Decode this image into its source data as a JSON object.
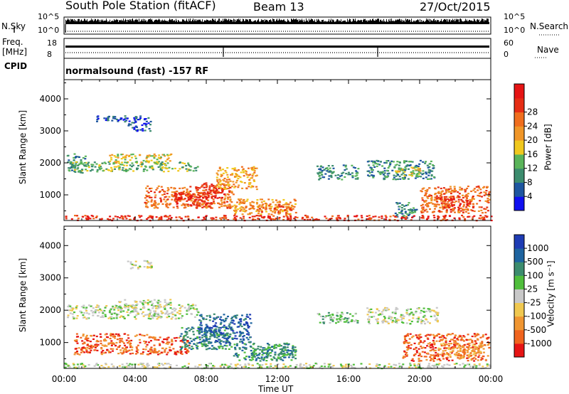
{
  "header": {
    "station": "South Pole Station (fitACF)",
    "beam": "Beam 13",
    "date": "27/Oct/2015"
  },
  "top_panels": {
    "nsky_label": "N.Sky",
    "nsearch_label": "N.Search",
    "sky_ticks": [
      "10^5",
      "10^0"
    ],
    "freq_label_1": "Freq.",
    "freq_label_2": "[MHz]",
    "freq_ticks": [
      "18",
      "8"
    ],
    "nave_label": "Nave",
    "nave_ticks": [
      "60",
      "0"
    ],
    "cpid_label": "CPID",
    "cpid_text": "normalsound (fast) -157 RF"
  },
  "chart_data": [
    {
      "type": "heatmap",
      "name": "power",
      "ylabel": "Slant Range [km]",
      "xlabel": "",
      "y_ticks": [
        1000,
        2000,
        3000,
        4000
      ],
      "ylim": [
        200,
        4600
      ],
      "xlim": [
        0,
        24
      ],
      "colorbar": {
        "label": "Power [dB]",
        "ticks": [
          "4",
          "8",
          "12",
          "16",
          "20",
          "24",
          "28"
        ],
        "colors": [
          "#1010f0",
          "#1e56a0",
          "#3c8c6e",
          "#5ab45a",
          "#f0c81e",
          "#f09628",
          "#f06e1e",
          "#e62d14",
          "#e61414"
        ]
      },
      "regions": [
        {
          "t0": 0.1,
          "t1": 1.2,
          "r0": 1700,
          "r1": 2300,
          "level": 2
        },
        {
          "t0": 0.2,
          "t1": 7.5,
          "r0": 1750,
          "r1": 2050,
          "level": 3
        },
        {
          "t0": 2.5,
          "t1": 6.0,
          "r0": 2000,
          "r1": 2300,
          "level": 4
        },
        {
          "t0": 1.8,
          "t1": 5.0,
          "r0": 3300,
          "r1": 3500,
          "level": 1
        },
        {
          "t0": 3.5,
          "t1": 4.8,
          "r0": 3000,
          "r1": 3300,
          "level": 1
        },
        {
          "t0": 4.5,
          "t1": 9.5,
          "r0": 600,
          "r1": 1300,
          "level": 6
        },
        {
          "t0": 6.0,
          "t1": 8.5,
          "r0": 650,
          "r1": 1100,
          "level": 7
        },
        {
          "t0": 7.5,
          "t1": 9.0,
          "r0": 900,
          "r1": 1400,
          "level": 7
        },
        {
          "t0": 8.5,
          "t1": 10.8,
          "r0": 1200,
          "r1": 1900,
          "level": 5
        },
        {
          "t0": 9.5,
          "t1": 13.0,
          "r0": 400,
          "r1": 900,
          "level": 5
        },
        {
          "t0": 10.8,
          "t1": 12.8,
          "r0": 450,
          "r1": 750,
          "level": 6
        },
        {
          "t0": 14.2,
          "t1": 16.5,
          "r0": 1500,
          "r1": 1950,
          "level": 2
        },
        {
          "t0": 17.0,
          "t1": 20.8,
          "r0": 1500,
          "r1": 2100,
          "level": 2
        },
        {
          "t0": 18.5,
          "t1": 20.0,
          "r0": 1600,
          "r1": 1900,
          "level": 4
        },
        {
          "t0": 18.5,
          "t1": 19.8,
          "r0": 300,
          "r1": 800,
          "level": 2
        },
        {
          "t0": 20.0,
          "t1": 23.9,
          "r0": 450,
          "r1": 1300,
          "level": 6
        },
        {
          "t0": 21.0,
          "t1": 23.0,
          "r0": 550,
          "r1": 1000,
          "level": 7
        },
        {
          "t0": 0.0,
          "t1": 24.0,
          "r0": 220,
          "r1": 380,
          "level": 7
        }
      ]
    },
    {
      "type": "heatmap",
      "name": "velocity",
      "ylabel": "Slant Range [km]",
      "xlabel": "Time UT",
      "x_ticks": [
        "00:00",
        "04:00",
        "08:00",
        "12:00",
        "16:00",
        "20:00",
        "00:00"
      ],
      "y_ticks": [
        1000,
        2000,
        3000,
        4000
      ],
      "ylim": [
        200,
        4600
      ],
      "xlim": [
        0,
        24
      ],
      "colorbar": {
        "label": "Velocity [m s⁻¹]",
        "ticks": [
          "1000",
          "500",
          "100",
          "25",
          "-25",
          "-100",
          "-500",
          "-1000"
        ],
        "colors": [
          "#1e3cb4",
          "#1e64a0",
          "#3c8c6e",
          "#50be3c",
          "#c8c8c8",
          "#f0c850",
          "#f09632",
          "#f0641e",
          "#e61414"
        ]
      },
      "regions": [
        {
          "t0": 0.1,
          "t1": 7.5,
          "r0": 1750,
          "r1": 2200,
          "level": 4
        },
        {
          "t0": 3.0,
          "t1": 6.0,
          "r0": 2100,
          "r1": 2350,
          "level": 4
        },
        {
          "t0": 3.5,
          "t1": 5.0,
          "r0": 3300,
          "r1": 3550,
          "level": 4
        },
        {
          "t0": 0.5,
          "t1": 5.0,
          "r0": 650,
          "r1": 1300,
          "level": 7
        },
        {
          "t0": 5.0,
          "t1": 7.0,
          "r0": 650,
          "r1": 1200,
          "level": 7
        },
        {
          "t0": 6.5,
          "t1": 9.5,
          "r0": 800,
          "r1": 1500,
          "level": 2
        },
        {
          "t0": 7.5,
          "t1": 10.5,
          "r0": 1000,
          "r1": 1900,
          "level": 1
        },
        {
          "t0": 9.5,
          "t1": 13.0,
          "r0": 450,
          "r1": 1000,
          "level": 2
        },
        {
          "t0": 10.5,
          "t1": 12.7,
          "r0": 500,
          "r1": 800,
          "level": 2
        },
        {
          "t0": 14.2,
          "t1": 16.5,
          "r0": 1600,
          "r1": 1950,
          "level": 3
        },
        {
          "t0": 17.0,
          "t1": 21.0,
          "r0": 1600,
          "r1": 2100,
          "level": 4
        },
        {
          "t0": 19.0,
          "t1": 23.9,
          "r0": 450,
          "r1": 1300,
          "level": 7
        },
        {
          "t0": 21.0,
          "t1": 23.5,
          "r0": 550,
          "r1": 1000,
          "level": 6
        },
        {
          "t0": 0.0,
          "t1": 24.0,
          "r0": 220,
          "r1": 380,
          "level": 4
        }
      ]
    }
  ]
}
